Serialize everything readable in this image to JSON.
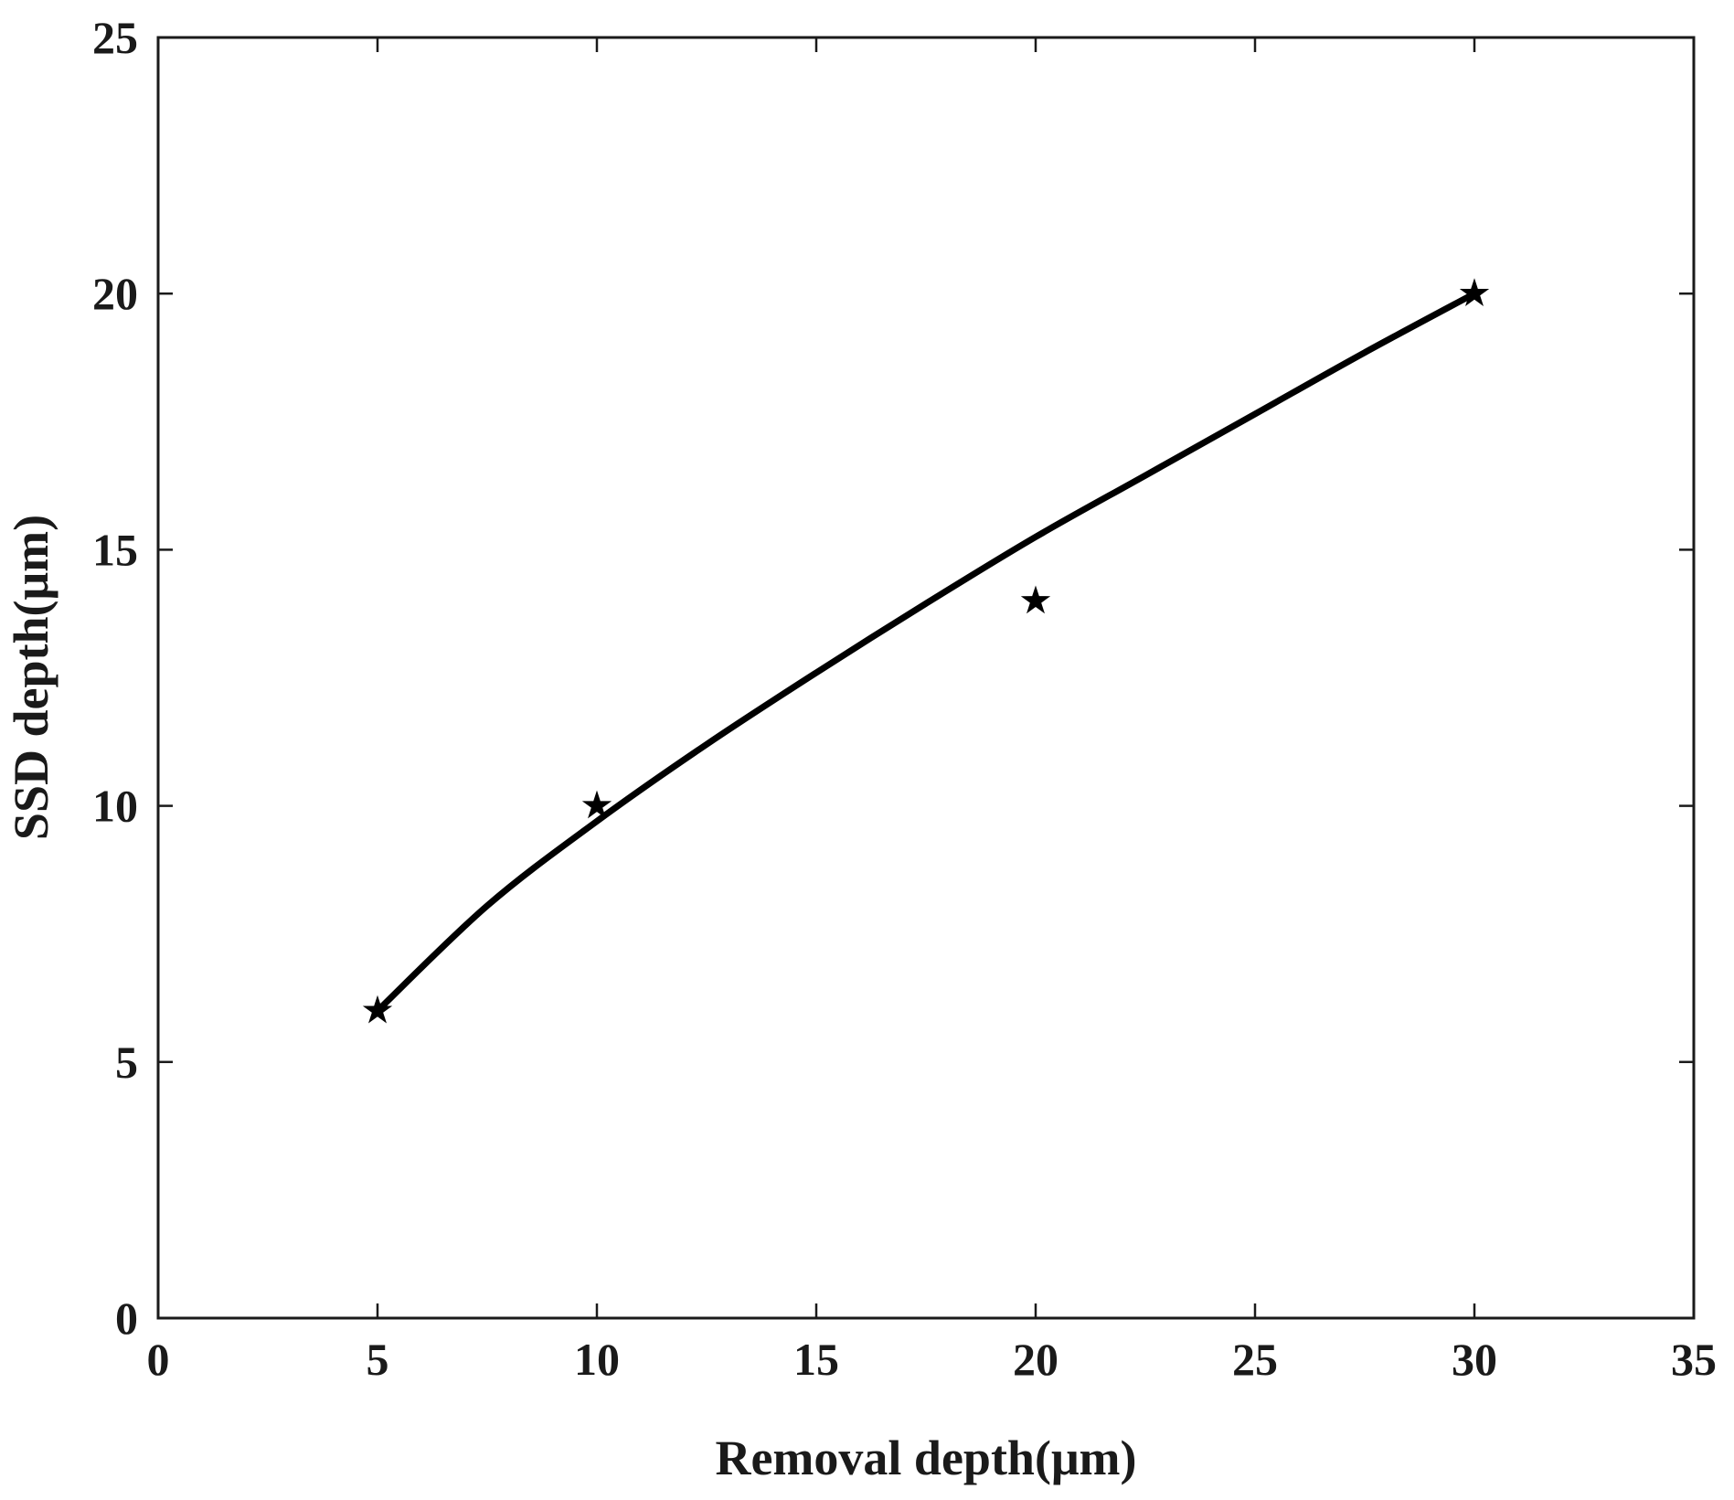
{
  "chart_data": {
    "type": "scatter",
    "title": "",
    "xlabel": "Removal depth(μm)",
    "ylabel": "SSD depth(μm)",
    "xlim": [
      0,
      35
    ],
    "ylim": [
      0,
      25
    ],
    "xticks": [
      0,
      5,
      10,
      15,
      20,
      25,
      30,
      35
    ],
    "yticks": [
      0,
      5,
      10,
      15,
      20,
      25
    ],
    "grid": false,
    "legend": "none",
    "series": [
      {
        "kind": "markers",
        "marker": "star",
        "color": "#000000",
        "x": [
          5,
          10,
          20,
          30
        ],
        "y": [
          6,
          10,
          14,
          20
        ]
      },
      {
        "kind": "fit-line",
        "color": "#000000",
        "x": [
          5,
          7.5,
          10,
          12.5,
          15,
          17.5,
          20,
          22.5,
          25,
          27.5,
          30
        ],
        "y": [
          6.0,
          8.05,
          9.7,
          11.2,
          12.6,
          13.95,
          15.25,
          16.45,
          17.65,
          18.85,
          20.0
        ]
      }
    ]
  }
}
